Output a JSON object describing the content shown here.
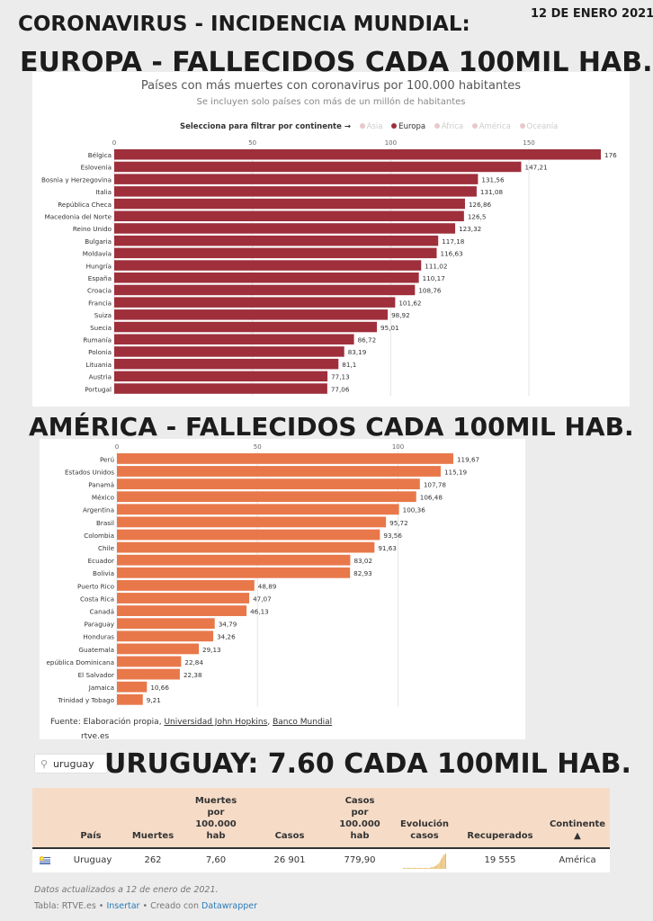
{
  "header": {
    "title": "CORONAVIRUS - INCIDENCIA MUNDIAL:",
    "date": "12 DE ENERO 2021",
    "europe_heading": "EUROPA - FALLECIDOS CADA 100MIL HAB.",
    "america_heading": "AMÉRICA - FALLECIDOS CADA 100MIL HAB.",
    "uruguay_heading": "URUGUAY: 7.60 CADA 100MIL HAB."
  },
  "filter": {
    "label": "Selecciona para filtrar por continente →",
    "options": [
      "Asia",
      "Europa",
      "África",
      "América",
      "Oceanía"
    ],
    "selected": "Europa"
  },
  "colors": {
    "europe": "#9e2f3b",
    "america": "#e8784a",
    "grid": "#e6e6e6"
  },
  "chart_data": [
    {
      "type": "bar",
      "orientation": "horizontal",
      "title": "Países con más muertes con coronavirus por 100.000 habitantes",
      "subtitle": "Se incluyen solo países con más de un millón de habitantes",
      "xlim": [
        0,
        176
      ],
      "ticks": [
        0,
        50,
        100,
        150
      ],
      "categories": [
        "Bélgica",
        "Eslovenia",
        "Bosnia y Herzegovina",
        "Italia",
        "República Checa",
        "Macedonia del Norte",
        "Reino Unido",
        "Bulgaria",
        "Moldavia",
        "Hungría",
        "España",
        "Croacia",
        "Francia",
        "Suiza",
        "Suecia",
        "Rumanía",
        "Polonia",
        "Lituania",
        "Austria",
        "Portugal"
      ],
      "values": [
        176,
        147.21,
        131.56,
        131.08,
        126.86,
        126.5,
        123.32,
        117.18,
        116.63,
        111.02,
        110.17,
        108.76,
        101.62,
        98.92,
        95.01,
        86.72,
        83.19,
        81.1,
        77.13,
        77.06
      ],
      "value_labels": [
        "176",
        "147,21",
        "131,56",
        "131,08",
        "126,86",
        "126,5",
        "123,32",
        "117,18",
        "116,63",
        "111,02",
        "110,17",
        "108,76",
        "101,62",
        "98,92",
        "95,01",
        "86,72",
        "83,19",
        "81,1",
        "77,13",
        "77,06"
      ]
    },
    {
      "type": "bar",
      "orientation": "horizontal",
      "xlim": [
        0,
        120
      ],
      "ticks": [
        0,
        50,
        100
      ],
      "categories": [
        "Perú",
        "Estados Unidos",
        "Panamá",
        "México",
        "Argentina",
        "Brasil",
        "Colombia",
        "Chile",
        "Ecuador",
        "Bolivia",
        "Puerto Rico",
        "Costa Rica",
        "Canadá",
        "Paraguay",
        "Honduras",
        "Guatemala",
        "epública Dominicana",
        "El Salvador",
        "Jamaica",
        "Trinidad y Tobago"
      ],
      "values": [
        119.67,
        115.19,
        107.78,
        106.48,
        100.36,
        95.72,
        93.56,
        91.63,
        83.02,
        82.93,
        48.89,
        47.07,
        46.13,
        34.79,
        34.26,
        29.13,
        22.84,
        22.38,
        10.66,
        9.21
      ],
      "value_labels": [
        "119,67",
        "115,19",
        "107,78",
        "106,48",
        "100,36",
        "95,72",
        "93,56",
        "91,63",
        "83,02",
        "82,93",
        "48,89",
        "47,07",
        "46,13",
        "34,79",
        "34,26",
        "29,13",
        "22,84",
        "22,38",
        "10,66",
        "9,21"
      ]
    }
  ],
  "source": {
    "prefix": "Fuente: Elaboración propia,",
    "link1": "Universidad John Hopkins",
    "sep": ",",
    "link2": "Banco Mundial",
    "outlet": "rtve.es"
  },
  "search": {
    "value": "uruguay"
  },
  "table": {
    "headers": [
      "País",
      "Muertes",
      "Muertes\npor\n100.000\nhab",
      "Casos",
      "Casos\npor\n100.000\nhab",
      "Evolución\ncasos",
      "Recuperados",
      "Continente\n▲"
    ],
    "row": {
      "pais": "Uruguay",
      "muertes": "262",
      "muertes_100k": "7,60",
      "casos": "26 901",
      "casos_100k": "779,90",
      "recuperados": "19 555",
      "continente": "América"
    },
    "sparkline": [
      1,
      1,
      1,
      1,
      1,
      1,
      1,
      1,
      1,
      1,
      1,
      1,
      1,
      1,
      1,
      1,
      1,
      1,
      1,
      1,
      1,
      1,
      1,
      1,
      1,
      1,
      2,
      2,
      2,
      3,
      3,
      4,
      5,
      6,
      8,
      10,
      12,
      14,
      15,
      16
    ]
  },
  "footer": {
    "updated": "Datos actualizados a 12 de enero de 2021.",
    "credit_prefix": "Tabla: RTVE.es •",
    "insert": "Insertar",
    "credit_mid": "• Creado con",
    "datawrapper": "Datawrapper"
  }
}
